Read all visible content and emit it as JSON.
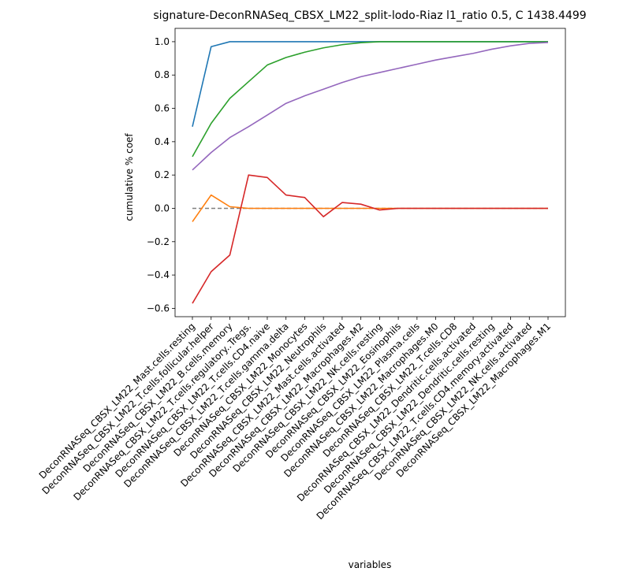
{
  "chart_data": {
    "type": "line",
    "title": "signature-DeconRNASeq_CBSX_LM22_split-lodo-Riaz l1_ratio 0.5, C 1438.4499",
    "xlabel": "variables",
    "ylabel": "cumulative % coef",
    "ylim": [
      -0.65,
      1.08
    ],
    "yticks": [
      -0.6,
      -0.4,
      -0.2,
      0.0,
      0.2,
      0.4,
      0.6,
      0.8,
      1.0
    ],
    "ytick_labels": [
      "−0.6",
      "−0.4",
      "−0.2",
      "0.0",
      "0.2",
      "0.4",
      "0.6",
      "0.8",
      "1.0"
    ],
    "grid": false,
    "categories": [
      "DeconRNASeq_CBSX_LM22_Mast.cells.resting",
      "DeconRNASeq_CBSX_LM22_T.cells.follicular.helper",
      "DeconRNASeq_CBSX_LM22_B.cells.memory",
      "DeconRNASeq_CBSX_LM22_T.cells.regulatory..Tregs.",
      "DeconRNASeq_CBSX_LM22_T.cells.CD4.naive",
      "DeconRNASeq_CBSX_LM22_T.cells.gamma.delta",
      "DeconRNASeq_CBSX_LM22_Monocytes",
      "DeconRNASeq_CBSX_LM22_Neutrophils",
      "DeconRNASeq_CBSX_LM22_Mast.cells.activated",
      "DeconRNASeq_CBSX_LM22_Macrophages.M2",
      "DeconRNASeq_CBSX_LM22_NK.cells.resting",
      "DeconRNASeq_CBSX_LM22_Eosinophils",
      "DeconRNASeq_CBSX_LM22_Plasma.cells",
      "DeconRNASeq_CBSX_LM22_Macrophages.M0",
      "DeconRNASeq_CBSX_LM22_T.cells.CD8",
      "DeconRNASeq_CBSX_LM22_Dendritic.cells.activated",
      "DeconRNASeq_CBSX_LM22_Dendritic.cells.resting",
      "DeconRNASeq_CBSX_LM22_T.cells.CD4.memory.activated",
      "DeconRNASeq_CBSX_LM22_NK.cells.activated",
      "DeconRNASeq_CBSX_LM22_Macrophages.M1"
    ],
    "series": [
      {
        "color": "#1f77b4",
        "values": [
          0.49,
          0.97,
          1.0,
          1.0,
          1.0,
          1.0,
          1.0,
          1.0,
          1.0,
          1.0,
          1.0,
          1.0,
          1.0,
          1.0,
          1.0,
          1.0,
          1.0,
          1.0,
          1.0,
          1.0
        ]
      },
      {
        "color": "#ff7f0e",
        "values": [
          -0.08,
          0.08,
          0.01,
          0.0,
          0.0,
          0.0,
          0.0,
          0.0,
          0.0,
          0.0,
          0.0,
          0.0,
          0.0,
          0.0,
          0.0,
          0.0,
          0.0,
          0.0,
          0.0,
          0.0
        ]
      },
      {
        "color": "#2ca02c",
        "values": [
          0.31,
          0.51,
          0.66,
          0.76,
          0.86,
          0.905,
          0.937,
          0.963,
          0.982,
          0.994,
          1.0,
          1.0,
          1.0,
          1.0,
          1.0,
          1.0,
          1.0,
          1.0,
          1.0,
          1.0
        ]
      },
      {
        "color": "#d62728",
        "values": [
          -0.57,
          -0.38,
          -0.28,
          0.2,
          0.185,
          0.08,
          0.065,
          -0.05,
          0.035,
          0.025,
          -0.01,
          0.0,
          0.0,
          0.0,
          0.0,
          0.0,
          0.0,
          0.0,
          0.0,
          0.0
        ]
      },
      {
        "color": "#9467bd",
        "values": [
          0.23,
          0.335,
          0.425,
          0.49,
          0.56,
          0.63,
          0.675,
          0.715,
          0.755,
          0.79,
          0.815,
          0.84,
          0.865,
          0.89,
          0.91,
          0.93,
          0.955,
          0.975,
          0.99,
          0.995
        ]
      }
    ],
    "reference_line": {
      "y": 0.0,
      "color": "#808080",
      "style": "dashed"
    }
  }
}
